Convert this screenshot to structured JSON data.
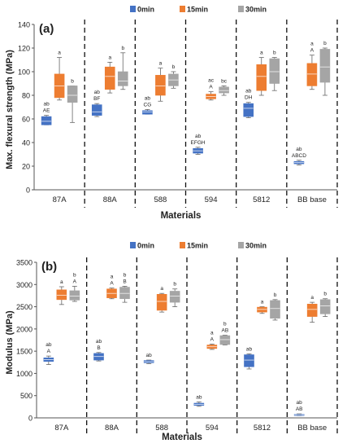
{
  "chart_data": [
    {
      "type": "box",
      "panel_label": "(a)",
      "ylabel": "Max. flexural strength (MPa)",
      "xlabel": "Materials",
      "ylim": [
        0,
        140
      ],
      "yticks": [
        0,
        20,
        40,
        60,
        80,
        100,
        120,
        140
      ],
      "categories": [
        "87A",
        "88A",
        "588",
        "594",
        "5812",
        "BB base"
      ],
      "legend_position": "top",
      "series": [
        {
          "name": "0min",
          "color": "#4472c4",
          "boxes": [
            {
              "q1": 55,
              "q3": 62,
              "median": 58,
              "whisker_low": 55,
              "whisker_high": 63
            },
            {
              "q1": 63,
              "q3": 72,
              "median": 66,
              "whisker_low": 62,
              "whisker_high": 73
            },
            {
              "q1": 64,
              "q3": 67,
              "median": 66,
              "whisker_low": 64,
              "whisker_high": 68
            },
            {
              "q1": 31,
              "q3": 35,
              "median": 33,
              "whisker_low": 30,
              "whisker_high": 36
            },
            {
              "q1": 62,
              "q3": 73,
              "median": 69,
              "whisker_low": 61,
              "whisker_high": 74
            },
            {
              "q1": 22,
              "q3": 24,
              "median": 23,
              "whisker_low": 21,
              "whisker_high": 25
            }
          ]
        },
        {
          "name": "15min",
          "color": "#ed7d31",
          "boxes": [
            {
              "q1": 78,
              "q3": 98,
              "median": 88,
              "whisker_low": 76,
              "whisker_high": 112
            },
            {
              "q1": 85,
              "q3": 104,
              "median": 96,
              "whisker_low": 82,
              "whisker_high": 108
            },
            {
              "q1": 80,
              "q3": 97,
              "median": 88,
              "whisker_low": 75,
              "whisker_high": 103
            },
            {
              "q1": 77,
              "q3": 81,
              "median": 79,
              "whisker_low": 76,
              "whisker_high": 83
            },
            {
              "q1": 84,
              "q3": 106,
              "median": 96,
              "whisker_low": 80,
              "whisker_high": 112
            },
            {
              "q1": 88,
              "q3": 107,
              "median": 98,
              "whisker_low": 85,
              "whisker_high": 114
            }
          ]
        },
        {
          "name": "30min",
          "color": "#a5a5a5",
          "boxes": [
            {
              "q1": 74,
              "q3": 88,
              "median": 80,
              "whisker_low": 57,
              "whisker_high": 88
            },
            {
              "q1": 88,
              "q3": 100,
              "median": 92,
              "whisker_low": 85,
              "whisker_high": 116
            },
            {
              "q1": 88,
              "q3": 98,
              "median": 93,
              "whisker_low": 86,
              "whisker_high": 100
            },
            {
              "q1": 82,
              "q3": 87,
              "median": 84,
              "whisker_low": 80,
              "whisker_high": 88
            },
            {
              "q1": 90,
              "q3": 111,
              "median": 100,
              "whisker_low": 84,
              "whisker_high": 112
            },
            {
              "q1": 91,
              "q3": 119,
              "median": 104,
              "whisker_low": 80,
              "whisker_high": 120
            }
          ]
        }
      ],
      "annotations": [
        [
          "ab\nAE",
          "a",
          "b"
        ],
        [
          "ab\nBF",
          "a",
          "b"
        ],
        [
          "ab\nCG",
          "a",
          "b"
        ],
        [
          "ab\nEFGH",
          "ac\nA",
          "bc"
        ],
        [
          "ab\nDH",
          "a",
          "b"
        ],
        [
          "ab\nABCD",
          "a\nA",
          "b"
        ]
      ]
    },
    {
      "type": "box",
      "panel_label": "(b)",
      "ylabel": "Modulus (MPa)",
      "xlabel": "Materials",
      "ylim": [
        0,
        3500
      ],
      "yticks": [
        0,
        500,
        1000,
        1500,
        2000,
        2500,
        3000,
        3500
      ],
      "categories": [
        "87A",
        "88A",
        "588",
        "594",
        "5812",
        "BB base"
      ],
      "legend_position": "top",
      "series": [
        {
          "name": "0min",
          "color": "#4472c4",
          "boxes": [
            {
              "q1": 1270,
              "q3": 1350,
              "median": 1310,
              "whisker_low": 1200,
              "whisker_high": 1390
            },
            {
              "q1": 1300,
              "q3": 1450,
              "median": 1380,
              "whisker_low": 1280,
              "whisker_high": 1470
            },
            {
              "q1": 1240,
              "q3": 1290,
              "median": 1265,
              "whisker_low": 1220,
              "whisker_high": 1300
            },
            {
              "q1": 280,
              "q3": 330,
              "median": 300,
              "whisker_low": 260,
              "whisker_high": 360
            },
            {
              "q1": 1150,
              "q3": 1420,
              "median": 1300,
              "whisker_low": 1100,
              "whisker_high": 1440
            },
            {
              "q1": 60,
              "q3": 80,
              "median": 70,
              "whisker_low": 50,
              "whisker_high": 90
            }
          ]
        },
        {
          "name": "15min",
          "color": "#ed7d31",
          "boxes": [
            {
              "q1": 2660,
              "q3": 2880,
              "median": 2760,
              "whisker_low": 2550,
              "whisker_high": 2950
            },
            {
              "q1": 2700,
              "q3": 2900,
              "median": 2800,
              "whisker_low": 2680,
              "whisker_high": 2920
            },
            {
              "q1": 2420,
              "q3": 2780,
              "median": 2620,
              "whisker_low": 2380,
              "whisker_high": 2800
            },
            {
              "q1": 1560,
              "q3": 1640,
              "median": 1600,
              "whisker_low": 1540,
              "whisker_high": 1660
            },
            {
              "q1": 2380,
              "q3": 2490,
              "median": 2440,
              "whisker_low": 2350,
              "whisker_high": 2500
            },
            {
              "q1": 2280,
              "q3": 2560,
              "median": 2440,
              "whisker_low": 2150,
              "whisker_high": 2600
            }
          ]
        },
        {
          "name": "30min",
          "color": "#a5a5a5",
          "boxes": [
            {
              "q1": 2650,
              "q3": 2860,
              "median": 2740,
              "whisker_low": 2620,
              "whisker_high": 2960
            },
            {
              "q1": 2680,
              "q3": 2940,
              "median": 2800,
              "whisker_low": 2600,
              "whisker_high": 2960
            },
            {
              "q1": 2600,
              "q3": 2850,
              "median": 2740,
              "whisker_low": 2500,
              "whisker_high": 2900
            },
            {
              "q1": 1650,
              "q3": 1850,
              "median": 1760,
              "whisker_low": 1640,
              "whisker_high": 1860
            },
            {
              "q1": 2240,
              "q3": 2640,
              "median": 2460,
              "whisker_low": 2200,
              "whisker_high": 2660
            },
            {
              "q1": 2340,
              "q3": 2660,
              "median": 2520,
              "whisker_low": 2280,
              "whisker_high": 2680
            }
          ]
        }
      ],
      "annotations": [
        [
          "ab\nA",
          "a",
          "b\nA"
        ],
        [
          "ab\nB",
          "a\nA",
          "b\nB"
        ],
        [
          "ab",
          "a",
          "b"
        ],
        [
          "ab",
          "a\nA",
          "b\nAB"
        ],
        [
          "ab",
          "a",
          "b"
        ],
        [
          "ab\nAB",
          "a",
          "b"
        ]
      ]
    }
  ]
}
